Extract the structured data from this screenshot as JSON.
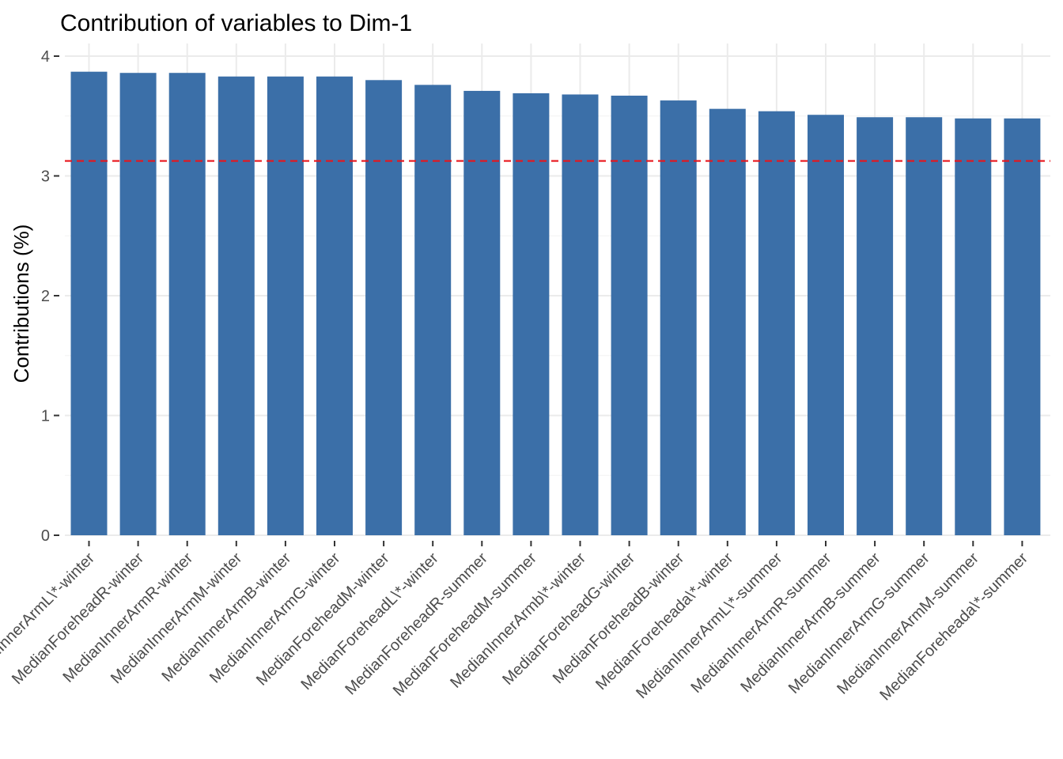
{
  "chart_data": {
    "type": "bar",
    "title": "Contribution of variables to Dim-1",
    "xlabel": "",
    "ylabel": "Contributions (%)",
    "ylim": [
      0,
      4
    ],
    "yticks": [
      0,
      1,
      2,
      3,
      4
    ],
    "grid": true,
    "reference_line": 3.125,
    "colors": {
      "bar": "#3b6fa8",
      "reference_line": "#e8151b"
    },
    "categories": [
      "MedianInnerArmL\\*-winter",
      "MedianForeheadR-winter",
      "MedianInnerArmR-winter",
      "MedianInnerArmM-winter",
      "MedianInnerArmB-winter",
      "MedianInnerArmG-winter",
      "MedianForeheadM-winter",
      "MedianForeheadL\\*-winter",
      "MedianForeheadR-summer",
      "MedianForeheadM-summer",
      "MedianInnerArmb\\*-winter",
      "MedianForeheadG-winter",
      "MedianForeheadB-winter",
      "MedianForeheada\\*-winter",
      "MedianInnerArmL\\*-summer",
      "MedianInnerArmR-summer",
      "MedianInnerArmB-summer",
      "MedianInnerArmG-summer",
      "MedianInnerArmM-summer",
      "MedianForeheada\\*-summer"
    ],
    "values": [
      3.87,
      3.86,
      3.86,
      3.83,
      3.83,
      3.83,
      3.8,
      3.76,
      3.71,
      3.69,
      3.68,
      3.67,
      3.63,
      3.56,
      3.54,
      3.51,
      3.49,
      3.49,
      3.48,
      3.48
    ]
  }
}
